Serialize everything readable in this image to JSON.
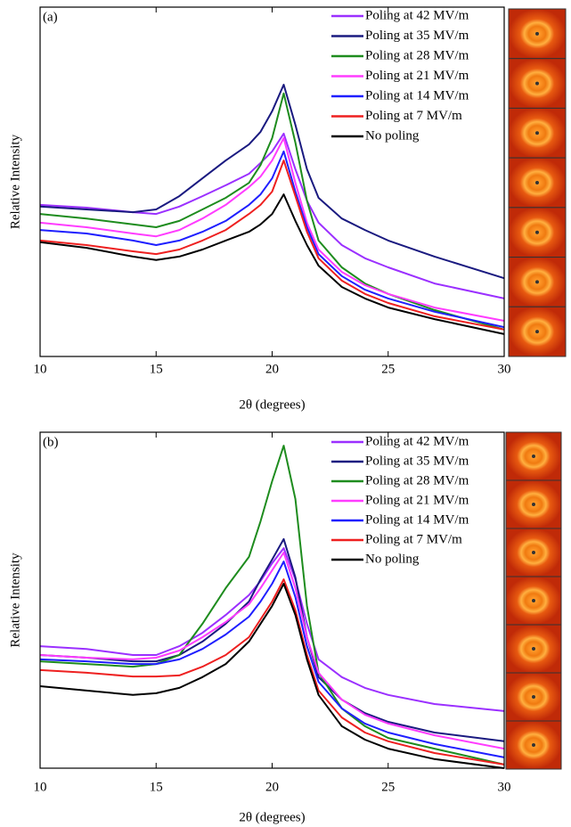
{
  "chart_data": [
    {
      "type": "line",
      "panel": "(a)",
      "xlabel": "2θ (degrees)",
      "ylabel": "Relative Intensity",
      "xlim": [
        10,
        30
      ],
      "xticks": [
        10,
        15,
        20,
        25,
        30
      ],
      "ylim": [
        0,
        100
      ],
      "x": [
        10,
        12,
        14,
        15,
        16,
        17,
        18,
        19,
        19.5,
        20,
        20.5,
        21,
        21.5,
        22,
        23,
        24,
        25,
        27,
        30
      ],
      "series": [
        {
          "name": "Poling at 42 MV/m",
          "color": "#9b30ff",
          "values": [
            43.4,
            42.6,
            41.3,
            40.8,
            42.9,
            45.9,
            49,
            52.3,
            55.4,
            58.7,
            63.8,
            53.6,
            44.6,
            38.3,
            31.9,
            28.1,
            25.5,
            20.9,
            16.6
          ]
        },
        {
          "name": "Poling at 35 MV/m",
          "color": "#1a1a80",
          "values": [
            42.9,
            42.1,
            41.3,
            42.1,
            45.9,
            51,
            56.1,
            60.7,
            64.3,
            70.2,
            77.8,
            66.3,
            53.6,
            45.4,
            39.5,
            36.2,
            33.2,
            28.6,
            22.4
          ]
        },
        {
          "name": "Poling at 28 MV/m",
          "color": "#1e8c1e",
          "values": [
            40.8,
            39.5,
            37.8,
            37,
            38.8,
            42.1,
            45.4,
            49.7,
            54.8,
            62.5,
            75.3,
            61.2,
            44.6,
            33.2,
            25.5,
            20.9,
            17.9,
            13.3,
            7.7
          ]
        },
        {
          "name": "Poling at 21 MV/m",
          "color": "#ff3cff",
          "values": [
            38.3,
            37,
            35.2,
            34.4,
            36.2,
            39.5,
            43.4,
            48.5,
            51.5,
            56.1,
            62.5,
            49.7,
            38.3,
            30.6,
            24.2,
            20.4,
            17.9,
            14,
            10.2
          ]
        },
        {
          "name": "Poling at 14 MV/m",
          "color": "#1f1fff",
          "values": [
            36.2,
            35.2,
            33.2,
            31.9,
            33.2,
            35.7,
            38.8,
            43.4,
            46.4,
            51,
            58.7,
            47.2,
            37,
            29.3,
            23,
            19.1,
            16.6,
            12.8,
            8.4
          ]
        },
        {
          "name": "Poling at 7 MV/m",
          "color": "#ee2020",
          "values": [
            33.2,
            31.9,
            30.1,
            29.3,
            30.6,
            33.2,
            36.2,
            40.8,
            43.4,
            47.2,
            56.1,
            45.9,
            35.7,
            28.1,
            21.7,
            17.9,
            15.3,
            11.5,
            7.7
          ]
        },
        {
          "name": "No poling",
          "color": "#000000",
          "values": [
            32.7,
            31.1,
            28.6,
            27.6,
            28.6,
            30.6,
            33.2,
            35.7,
            37.8,
            40.8,
            46.4,
            38.8,
            31.9,
            26,
            19.9,
            16.6,
            14,
            10.7,
            6.4
          ]
        }
      ]
    },
    {
      "type": "line",
      "panel": "(b)",
      "xlabel": "2θ (degrees)",
      "ylabel": "Relative Intensity",
      "xlim": [
        10,
        30
      ],
      "xticks": [
        10,
        15,
        20,
        25,
        30
      ],
      "ylim": [
        0,
        100
      ],
      "x": [
        10,
        12,
        14,
        15,
        16,
        17,
        18,
        19,
        19.5,
        20,
        20.5,
        21,
        21.5,
        22,
        23,
        24,
        25,
        27,
        30
      ],
      "series": [
        {
          "name": "Poling at 42 MV/m",
          "color": "#9b30ff",
          "values": [
            36.3,
            35.5,
            33.7,
            33.7,
            36.3,
            40.3,
            45.6,
            51.5,
            55.7,
            61,
            65.5,
            56.2,
            43,
            32.4,
            27.1,
            23.9,
            21.8,
            19.1,
            17
          ]
        },
        {
          "name": "Poling at 35 MV/m",
          "color": "#1a1a80",
          "values": [
            33.7,
            32.9,
            31.8,
            31.8,
            33.7,
            37.7,
            43,
            49.6,
            56.2,
            62.1,
            68.2,
            56.8,
            39,
            27.1,
            20.4,
            16.4,
            13.8,
            10.6,
            8
          ]
        },
        {
          "name": "Poling at 28 MV/m",
          "color": "#1e8c1e",
          "values": [
            31.8,
            31,
            30.2,
            31,
            33.7,
            43,
            53.6,
            62.9,
            73.5,
            85.4,
            96,
            80.1,
            48.3,
            28.4,
            17.8,
            12.5,
            9,
            5.8,
            1.1
          ]
        },
        {
          "name": "Poling at 21 MV/m",
          "color": "#ff3cff",
          "values": [
            33.7,
            32.9,
            32.4,
            32.9,
            35,
            39,
            43.5,
            48.8,
            53.6,
            58.9,
            64.2,
            53.6,
            39,
            28.4,
            20.4,
            15.9,
            13.3,
            9.8,
            5.8
          ]
        },
        {
          "name": "Poling at 14 MV/m",
          "color": "#1f1fff",
          "values": [
            32.4,
            31.8,
            31,
            31,
            32.4,
            35.5,
            39.8,
            45.1,
            49.6,
            54.9,
            61.5,
            50.9,
            36.3,
            25.7,
            17.8,
            13.3,
            10.6,
            7.2,
            3.2
          ]
        },
        {
          "name": "Poling at 7 MV/m",
          "color": "#ee2020",
          "values": [
            29.2,
            28.4,
            27.3,
            27.3,
            27.6,
            30.2,
            33.7,
            39,
            44.3,
            49.6,
            56.2,
            47,
            33.7,
            23.1,
            15.1,
            10.6,
            8,
            4.5,
            1.1
          ]
        },
        {
          "name": "No poling",
          "color": "#000000",
          "values": [
            24.4,
            23.1,
            21.8,
            22.3,
            23.9,
            27.1,
            31,
            37.7,
            43,
            48.3,
            54.9,
            45.6,
            32.4,
            21.8,
            12.5,
            8.5,
            5.8,
            2.7,
            0
          ]
        }
      ]
    }
  ]
}
